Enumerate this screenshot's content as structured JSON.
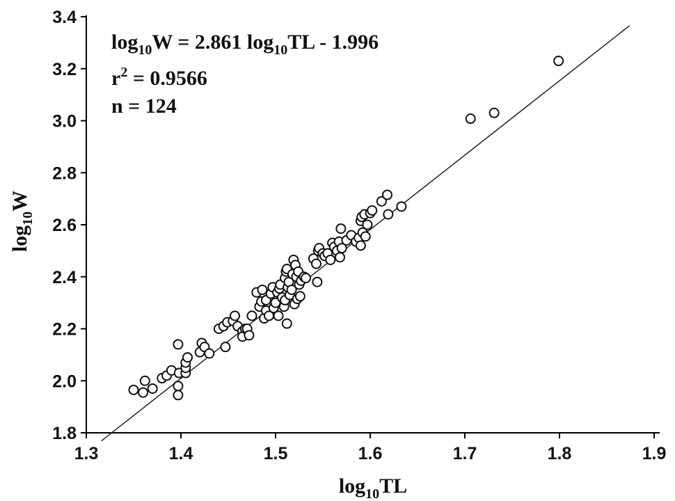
{
  "chart_data": {
    "type": "scatter",
    "title": "",
    "xlabel": {
      "main": "log",
      "sub": "10",
      "rest": "TL"
    },
    "ylabel": {
      "main": "log",
      "sub": "10",
      "rest": "W"
    },
    "xlim": [
      1.3,
      1.9
    ],
    "ylim": [
      1.8,
      3.4
    ],
    "xticks": [
      "1.3",
      "1.4",
      "1.5",
      "1.6",
      "1.7",
      "1.8",
      "1.9"
    ],
    "yticks": [
      "1.8",
      "2.0",
      "2.2",
      "2.4",
      "2.6",
      "2.8",
      "3.0",
      "3.2",
      "3.4"
    ],
    "grid": false,
    "annotations": {
      "equation": {
        "p1": "log",
        "s1": "10",
        "p2": "W = 2.861 log",
        "s2": "10",
        "p3": "TL - 1.996"
      },
      "r2": {
        "p1": "r",
        "sup": "2",
        "p2": " = 0.9566"
      },
      "n": "n = 124"
    },
    "fit_line": {
      "slope": 2.861,
      "intercept": -1.996,
      "x_range": [
        1.316,
        1.874
      ]
    },
    "points": [
      [
        1.35,
        1.965
      ],
      [
        1.36,
        1.955
      ],
      [
        1.362,
        2.0
      ],
      [
        1.37,
        1.97
      ],
      [
        1.38,
        2.01
      ],
      [
        1.385,
        2.02
      ],
      [
        1.39,
        2.04
      ],
      [
        1.397,
        1.98
      ],
      [
        1.397,
        1.945
      ],
      [
        1.397,
        2.14
      ],
      [
        1.398,
        2.03
      ],
      [
        1.405,
        2.03
      ],
      [
        1.405,
        2.05
      ],
      [
        1.405,
        2.07
      ],
      [
        1.407,
        2.09
      ],
      [
        1.42,
        2.11
      ],
      [
        1.422,
        2.145
      ],
      [
        1.425,
        2.13
      ],
      [
        1.43,
        2.105
      ],
      [
        1.44,
        2.2
      ],
      [
        1.445,
        2.21
      ],
      [
        1.447,
        2.13
      ],
      [
        1.449,
        2.225
      ],
      [
        1.455,
        2.23
      ],
      [
        1.457,
        2.25
      ],
      [
        1.46,
        2.21
      ],
      [
        1.465,
        2.19
      ],
      [
        1.465,
        2.17
      ],
      [
        1.468,
        2.2
      ],
      [
        1.47,
        2.2
      ],
      [
        1.472,
        2.175
      ],
      [
        1.475,
        2.25
      ],
      [
        1.48,
        2.34
      ],
      [
        1.483,
        2.285
      ],
      [
        1.485,
        2.305
      ],
      [
        1.486,
        2.35
      ],
      [
        1.488,
        2.24
      ],
      [
        1.49,
        2.31
      ],
      [
        1.49,
        2.27
      ],
      [
        1.493,
        2.25
      ],
      [
        1.495,
        2.335
      ],
      [
        1.497,
        2.36
      ],
      [
        1.498,
        2.28
      ],
      [
        1.5,
        2.3
      ],
      [
        1.502,
        2.34
      ],
      [
        1.503,
        2.25
      ],
      [
        1.504,
        2.355
      ],
      [
        1.505,
        2.37
      ],
      [
        1.507,
        2.32
      ],
      [
        1.509,
        2.285
      ],
      [
        1.51,
        2.31
      ],
      [
        1.51,
        2.395
      ],
      [
        1.511,
        2.42
      ],
      [
        1.512,
        2.22
      ],
      [
        1.512,
        2.43
      ],
      [
        1.513,
        2.36
      ],
      [
        1.514,
        2.38
      ],
      [
        1.515,
        2.33
      ],
      [
        1.517,
        2.35
      ],
      [
        1.518,
        2.41
      ],
      [
        1.519,
        2.465
      ],
      [
        1.52,
        2.295
      ],
      [
        1.521,
        2.445
      ],
      [
        1.522,
        2.4
      ],
      [
        1.523,
        2.315
      ],
      [
        1.524,
        2.42
      ],
      [
        1.525,
        2.37
      ],
      [
        1.526,
        2.325
      ],
      [
        1.527,
        2.385
      ],
      [
        1.53,
        2.4
      ],
      [
        1.532,
        2.395
      ],
      [
        1.54,
        2.47
      ],
      [
        1.543,
        2.45
      ],
      [
        1.544,
        2.38
      ],
      [
        1.545,
        2.5
      ],
      [
        1.546,
        2.51
      ],
      [
        1.55,
        2.49
      ],
      [
        1.552,
        2.48
      ],
      [
        1.555,
        2.49
      ],
      [
        1.558,
        2.465
      ],
      [
        1.56,
        2.53
      ],
      [
        1.562,
        2.515
      ],
      [
        1.565,
        2.5
      ],
      [
        1.567,
        2.535
      ],
      [
        1.568,
        2.475
      ],
      [
        1.569,
        2.585
      ],
      [
        1.57,
        2.51
      ],
      [
        1.575,
        2.54
      ],
      [
        1.58,
        2.56
      ],
      [
        1.585,
        2.535
      ],
      [
        1.588,
        2.55
      ],
      [
        1.59,
        2.52
      ],
      [
        1.59,
        2.615
      ],
      [
        1.591,
        2.63
      ],
      [
        1.592,
        2.57
      ],
      [
        1.594,
        2.64
      ],
      [
        1.595,
        2.555
      ],
      [
        1.597,
        2.6
      ],
      [
        1.6,
        2.645
      ],
      [
        1.602,
        2.655
      ],
      [
        1.612,
        2.69
      ],
      [
        1.618,
        2.715
      ],
      [
        1.619,
        2.64
      ],
      [
        1.633,
        2.67
      ],
      [
        1.706,
        3.008
      ],
      [
        1.731,
        3.03
      ],
      [
        1.799,
        3.23
      ]
    ]
  }
}
